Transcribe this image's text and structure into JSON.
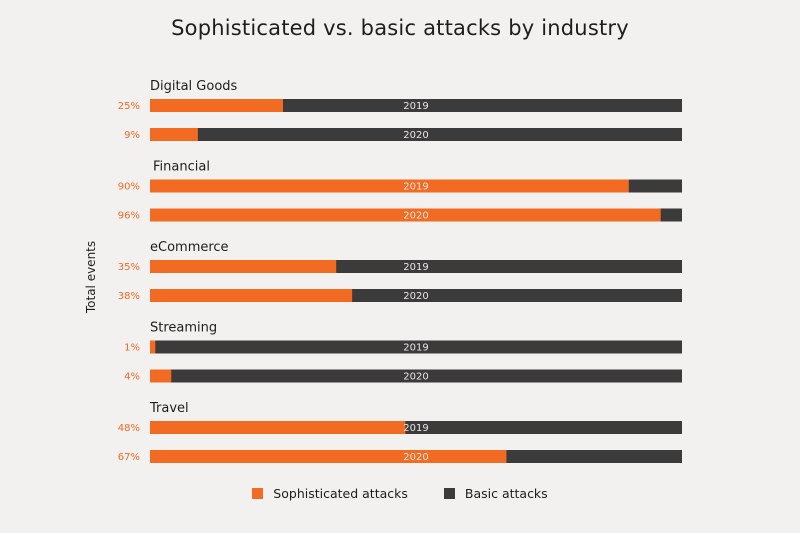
{
  "chart_data": {
    "type": "bar",
    "orientation": "horizontal",
    "stacked": true,
    "title": "Sophisticated vs. basic attacks by industry",
    "ylabel": "Total events",
    "xlim": [
      0,
      100
    ],
    "grid": false,
    "legend_position": "bottom",
    "series": [
      {
        "name": "Sophisticated attacks",
        "color": "#f26b22"
      },
      {
        "name": "Basic attacks",
        "color": "#3b3b3b"
      }
    ],
    "groups": [
      {
        "name": "Digital Goods",
        "bars": [
          {
            "year": "2019",
            "label": "25%",
            "value": 25
          },
          {
            "year": "2020",
            "label": "9%",
            "value": 9
          }
        ]
      },
      {
        "name": "Financial",
        "bars": [
          {
            "year": "2019",
            "label": "90%",
            "value": 90
          },
          {
            "year": "2020",
            "label": "96%",
            "value": 96
          }
        ]
      },
      {
        "name": "eCommerce",
        "bars": [
          {
            "year": "2019",
            "label": "35%",
            "value": 35
          },
          {
            "year": "2020",
            "label": "38%",
            "value": 38
          }
        ]
      },
      {
        "name": "Streaming",
        "bars": [
          {
            "year": "2019",
            "label": "1%",
            "value": 1
          },
          {
            "year": "2020",
            "label": "4%",
            "value": 4
          }
        ]
      },
      {
        "name": "Travel",
        "bars": [
          {
            "year": "2019",
            "label": "48%",
            "value": 48
          },
          {
            "year": "2020",
            "label": "67%",
            "value": 67
          }
        ]
      }
    ]
  }
}
